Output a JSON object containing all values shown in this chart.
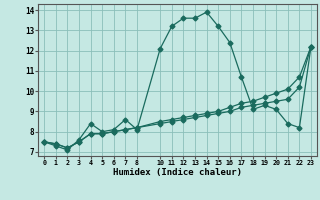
{
  "xlabel": "Humidex (Indice chaleur)",
  "bg_color": "#c5e8e3",
  "grid_color": "#8bbfba",
  "line_color": "#1a6b5e",
  "xlim": [
    -0.5,
    23.5
  ],
  "ylim": [
    6.8,
    14.3
  ],
  "xticks": [
    0,
    1,
    2,
    3,
    4,
    5,
    6,
    7,
    8,
    10,
    11,
    12,
    13,
    14,
    15,
    16,
    17,
    18,
    19,
    20,
    21,
    22,
    23
  ],
  "yticks": [
    7,
    8,
    9,
    10,
    11,
    12,
    13,
    14
  ],
  "line1_x": [
    0,
    1,
    2,
    3,
    4,
    5,
    6,
    7,
    8,
    10,
    11,
    12,
    13,
    14,
    15,
    16,
    17,
    18,
    19,
    20,
    21,
    22,
    23
  ],
  "line1_y": [
    7.5,
    7.3,
    7.1,
    7.6,
    8.4,
    8.0,
    8.1,
    8.6,
    8.1,
    12.1,
    13.2,
    13.6,
    13.6,
    13.9,
    13.2,
    12.4,
    10.7,
    9.1,
    9.3,
    9.1,
    8.4,
    8.2,
    12.2
  ],
  "line2_x": [
    0,
    1,
    2,
    3,
    4,
    5,
    6,
    7,
    8,
    10,
    11,
    12,
    13,
    14,
    15,
    16,
    17,
    18,
    19,
    20,
    21,
    22,
    23
  ],
  "line2_y": [
    7.5,
    7.4,
    7.2,
    7.5,
    7.9,
    7.9,
    8.0,
    8.1,
    8.2,
    8.5,
    8.6,
    8.7,
    8.8,
    8.9,
    9.0,
    9.2,
    9.4,
    9.5,
    9.7,
    9.9,
    10.1,
    10.7,
    12.2
  ],
  "line3_x": [
    0,
    1,
    2,
    3,
    4,
    5,
    6,
    7,
    8,
    10,
    11,
    12,
    13,
    14,
    15,
    16,
    17,
    18,
    19,
    20,
    21,
    22,
    23
  ],
  "line3_y": [
    7.5,
    7.4,
    7.2,
    7.5,
    7.9,
    7.9,
    8.0,
    8.1,
    8.2,
    8.4,
    8.5,
    8.6,
    8.7,
    8.8,
    8.9,
    9.0,
    9.2,
    9.3,
    9.4,
    9.5,
    9.6,
    10.2,
    12.2
  ]
}
